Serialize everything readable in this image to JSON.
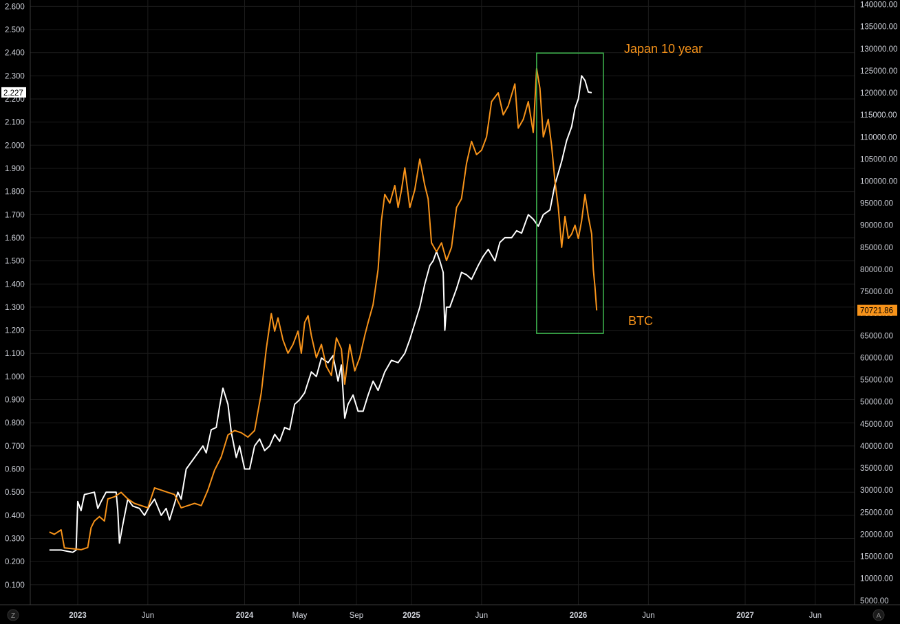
{
  "chart_data": {
    "type": "line",
    "title": "",
    "left_axis": {
      "ticks": [
        "0.100",
        "0.200",
        "0.300",
        "0.400",
        "0.500",
        "0.600",
        "0.700",
        "0.800",
        "0.900",
        "1.000",
        "1.100",
        "1.200",
        "1.300",
        "1.400",
        "1.500",
        "1.600",
        "1.700",
        "1.800",
        "1.900",
        "2.000",
        "2.100",
        "2.200",
        "2.300",
        "2.400",
        "2.500",
        "2.600"
      ],
      "ylim": [
        0.0,
        2.66
      ],
      "last_value_label": "2.227"
    },
    "right_axis": {
      "ticks": [
        "5000.00",
        "10000.00",
        "15000.00",
        "20000.00",
        "25000.00",
        "30000.00",
        "35000.00",
        "40000.00",
        "45000.00",
        "50000.00",
        "55000.00",
        "60000.00",
        "65000.00",
        "70000.00",
        "75000.00",
        "80000.00",
        "85000.00",
        "90000.00",
        "95000.00",
        "100000.00",
        "105000.00",
        "110000.00",
        "115000.00",
        "120000.00",
        "125000.00",
        "130000.00",
        "135000.00",
        "140000.00"
      ],
      "ylim": [
        4000,
        141000
      ],
      "last_value_label": "70721.86"
    },
    "x_axis": {
      "range": [
        2022.83,
        2027.42
      ],
      "ticks": [
        {
          "x": 2023.0,
          "label": "2023",
          "major": true
        },
        {
          "x": 2023.42,
          "label": "Jun",
          "major": false
        },
        {
          "x": 2024.0,
          "label": "2024",
          "major": true
        },
        {
          "x": 2024.33,
          "label": "May",
          "major": false
        },
        {
          "x": 2024.67,
          "label": "Sep",
          "major": false
        },
        {
          "x": 2025.0,
          "label": "2025",
          "major": true
        },
        {
          "x": 2025.42,
          "label": "Jun",
          "major": false
        },
        {
          "x": 2026.0,
          "label": "2026",
          "major": true
        },
        {
          "x": 2026.42,
          "label": "Jun",
          "major": false
        },
        {
          "x": 2027.0,
          "label": "2027",
          "major": true
        },
        {
          "x": 2027.42,
          "label": "Jun",
          "major": false
        }
      ]
    },
    "series": [
      {
        "name": "Japan 10 year",
        "axis": "left",
        "color": "#ffffff",
        "points": [
          [
            2022.83,
            0.25
          ],
          [
            2022.9,
            0.25
          ],
          [
            2022.97,
            0.24
          ],
          [
            2022.99,
            0.25
          ],
          [
            2023.0,
            0.46
          ],
          [
            2023.02,
            0.42
          ],
          [
            2023.04,
            0.49
          ],
          [
            2023.1,
            0.5
          ],
          [
            2023.12,
            0.43
          ],
          [
            2023.14,
            0.46
          ],
          [
            2023.17,
            0.5
          ],
          [
            2023.2,
            0.5
          ],
          [
            2023.23,
            0.5
          ],
          [
            2023.24,
            0.42
          ],
          [
            2023.25,
            0.28
          ],
          [
            2023.27,
            0.36
          ],
          [
            2023.3,
            0.47
          ],
          [
            2023.33,
            0.44
          ],
          [
            2023.37,
            0.43
          ],
          [
            2023.4,
            0.4
          ],
          [
            2023.43,
            0.44
          ],
          [
            2023.46,
            0.47
          ],
          [
            2023.5,
            0.4
          ],
          [
            2023.53,
            0.43
          ],
          [
            2023.55,
            0.38
          ],
          [
            2023.58,
            0.45
          ],
          [
            2023.6,
            0.5
          ],
          [
            2023.62,
            0.47
          ],
          [
            2023.65,
            0.6
          ],
          [
            2023.7,
            0.65
          ],
          [
            2023.75,
            0.7
          ],
          [
            2023.77,
            0.67
          ],
          [
            2023.8,
            0.77
          ],
          [
            2023.83,
            0.78
          ],
          [
            2023.85,
            0.87
          ],
          [
            2023.87,
            0.95
          ],
          [
            2023.9,
            0.88
          ],
          [
            2023.92,
            0.76
          ],
          [
            2023.95,
            0.65
          ],
          [
            2023.97,
            0.7
          ],
          [
            2024.0,
            0.6
          ],
          [
            2024.03,
            0.6
          ],
          [
            2024.06,
            0.7
          ],
          [
            2024.09,
            0.73
          ],
          [
            2024.12,
            0.68
          ],
          [
            2024.15,
            0.7
          ],
          [
            2024.18,
            0.75
          ],
          [
            2024.21,
            0.72
          ],
          [
            2024.24,
            0.78
          ],
          [
            2024.27,
            0.77
          ],
          [
            2024.3,
            0.88
          ],
          [
            2024.33,
            0.9
          ],
          [
            2024.36,
            0.93
          ],
          [
            2024.4,
            1.02
          ],
          [
            2024.43,
            1.0
          ],
          [
            2024.46,
            1.08
          ],
          [
            2024.5,
            1.06
          ],
          [
            2024.53,
            1.09
          ],
          [
            2024.56,
            0.98
          ],
          [
            2024.58,
            1.05
          ],
          [
            2024.6,
            0.82
          ],
          [
            2024.62,
            0.88
          ],
          [
            2024.65,
            0.92
          ],
          [
            2024.68,
            0.85
          ],
          [
            2024.71,
            0.85
          ],
          [
            2024.74,
            0.92
          ],
          [
            2024.77,
            0.98
          ],
          [
            2024.8,
            0.94
          ],
          [
            2024.84,
            1.02
          ],
          [
            2024.88,
            1.07
          ],
          [
            2024.92,
            1.06
          ],
          [
            2024.96,
            1.1
          ],
          [
            2024.99,
            1.16
          ],
          [
            2025.02,
            1.23
          ],
          [
            2025.05,
            1.3
          ],
          [
            2025.08,
            1.4
          ],
          [
            2025.11,
            1.48
          ],
          [
            2025.13,
            1.5
          ],
          [
            2025.15,
            1.54
          ],
          [
            2025.17,
            1.5
          ],
          [
            2025.19,
            1.45
          ],
          [
            2025.2,
            1.2
          ],
          [
            2025.21,
            1.3
          ],
          [
            2025.23,
            1.3
          ],
          [
            2025.27,
            1.38
          ],
          [
            2025.3,
            1.45
          ],
          [
            2025.33,
            1.44
          ],
          [
            2025.36,
            1.42
          ],
          [
            2025.4,
            1.48
          ],
          [
            2025.43,
            1.52
          ],
          [
            2025.46,
            1.55
          ],
          [
            2025.5,
            1.5
          ],
          [
            2025.53,
            1.58
          ],
          [
            2025.56,
            1.6
          ],
          [
            2025.6,
            1.6
          ],
          [
            2025.63,
            1.63
          ],
          [
            2025.66,
            1.62
          ],
          [
            2025.7,
            1.7
          ],
          [
            2025.73,
            1.68
          ],
          [
            2025.76,
            1.65
          ],
          [
            2025.79,
            1.7
          ],
          [
            2025.83,
            1.72
          ],
          [
            2025.86,
            1.83
          ],
          [
            2025.9,
            1.93
          ],
          [
            2025.93,
            2.02
          ],
          [
            2025.96,
            2.08
          ],
          [
            2025.98,
            2.16
          ],
          [
            2026.0,
            2.2
          ],
          [
            2026.02,
            2.3
          ],
          [
            2026.04,
            2.28
          ],
          [
            2026.06,
            2.23
          ],
          [
            2026.08,
            2.227
          ]
        ]
      },
      {
        "name": "BTC",
        "axis": "right",
        "color": "#f7931a",
        "points": [
          [
            2022.83,
            20500
          ],
          [
            2022.86,
            20000
          ],
          [
            2022.9,
            21000
          ],
          [
            2022.92,
            16900
          ],
          [
            2022.95,
            16800
          ],
          [
            2023.0,
            16600
          ],
          [
            2023.02,
            16500
          ],
          [
            2023.06,
            17000
          ],
          [
            2023.08,
            21500
          ],
          [
            2023.1,
            23000
          ],
          [
            2023.13,
            24000
          ],
          [
            2023.16,
            23000
          ],
          [
            2023.18,
            28000
          ],
          [
            2023.22,
            28500
          ],
          [
            2023.26,
            29500
          ],
          [
            2023.3,
            28000
          ],
          [
            2023.34,
            27000
          ],
          [
            2023.38,
            26500
          ],
          [
            2023.42,
            26000
          ],
          [
            2023.46,
            30500
          ],
          [
            2023.5,
            30000
          ],
          [
            2023.54,
            29500
          ],
          [
            2023.58,
            29000
          ],
          [
            2023.62,
            26000
          ],
          [
            2023.66,
            26500
          ],
          [
            2023.7,
            27000
          ],
          [
            2023.74,
            26500
          ],
          [
            2023.78,
            30000
          ],
          [
            2023.82,
            34500
          ],
          [
            2023.86,
            37500
          ],
          [
            2023.9,
            42500
          ],
          [
            2023.94,
            43500
          ],
          [
            2023.98,
            43000
          ],
          [
            2024.02,
            42000
          ],
          [
            2024.06,
            43500
          ],
          [
            2024.1,
            52000
          ],
          [
            2024.13,
            62000
          ],
          [
            2024.16,
            70000
          ],
          [
            2024.18,
            66000
          ],
          [
            2024.2,
            69000
          ],
          [
            2024.23,
            64000
          ],
          [
            2024.26,
            61000
          ],
          [
            2024.29,
            63000
          ],
          [
            2024.32,
            66000
          ],
          [
            2024.34,
            61000
          ],
          [
            2024.36,
            68000
          ],
          [
            2024.38,
            69500
          ],
          [
            2024.4,
            65000
          ],
          [
            2024.43,
            60000
          ],
          [
            2024.46,
            63000
          ],
          [
            2024.49,
            58000
          ],
          [
            2024.52,
            56000
          ],
          [
            2024.55,
            64500
          ],
          [
            2024.58,
            62000
          ],
          [
            2024.6,
            54000
          ],
          [
            2024.63,
            63000
          ],
          [
            2024.66,
            57000
          ],
          [
            2024.69,
            60000
          ],
          [
            2024.72,
            65000
          ],
          [
            2024.74,
            68000
          ],
          [
            2024.77,
            72000
          ],
          [
            2024.8,
            80000
          ],
          [
            2024.82,
            91000
          ],
          [
            2024.84,
            97000
          ],
          [
            2024.87,
            95000
          ],
          [
            2024.9,
            99000
          ],
          [
            2024.92,
            94000
          ],
          [
            2024.94,
            98000
          ],
          [
            2024.96,
            103000
          ],
          [
            2024.99,
            94000
          ],
          [
            2025.02,
            98000
          ],
          [
            2025.05,
            105000
          ],
          [
            2025.08,
            99000
          ],
          [
            2025.1,
            96000
          ],
          [
            2025.12,
            86000
          ],
          [
            2025.15,
            84000
          ],
          [
            2025.18,
            86000
          ],
          [
            2025.21,
            82000
          ],
          [
            2025.24,
            85000
          ],
          [
            2025.27,
            94000
          ],
          [
            2025.3,
            96000
          ],
          [
            2025.33,
            104000
          ],
          [
            2025.36,
            109000
          ],
          [
            2025.39,
            106000
          ],
          [
            2025.42,
            107000
          ],
          [
            2025.45,
            110000
          ],
          [
            2025.48,
            118000
          ],
          [
            2025.52,
            120000
          ],
          [
            2025.55,
            115000
          ],
          [
            2025.58,
            117000
          ],
          [
            2025.62,
            122000
          ],
          [
            2025.64,
            112000
          ],
          [
            2025.67,
            114000
          ],
          [
            2025.7,
            118000
          ],
          [
            2025.73,
            111000
          ],
          [
            2025.75,
            125500
          ],
          [
            2025.77,
            121000
          ],
          [
            2025.79,
            110000
          ],
          [
            2025.82,
            114000
          ],
          [
            2025.84,
            108000
          ],
          [
            2025.86,
            100000
          ],
          [
            2025.88,
            94000
          ],
          [
            2025.9,
            85000
          ],
          [
            2025.92,
            92000
          ],
          [
            2025.94,
            87000
          ],
          [
            2025.96,
            88000
          ],
          [
            2025.98,
            90000
          ],
          [
            2026.0,
            87000
          ],
          [
            2026.02,
            91000
          ],
          [
            2026.04,
            97000
          ],
          [
            2026.06,
            92000
          ],
          [
            2026.08,
            88000
          ],
          [
            2026.09,
            80000
          ],
          [
            2026.1,
            76000
          ],
          [
            2026.11,
            70721.86
          ]
        ]
      }
    ],
    "annotations": [
      {
        "text": "Japan 10 year",
        "color": "#f7931a"
      },
      {
        "text": "BTC",
        "color": "#f7931a"
      }
    ],
    "highlight_box": {
      "x": [
        2025.75,
        2026.15
      ],
      "right_axis_y": [
        65500,
        129000
      ],
      "color": "#3fb950"
    },
    "corner_labels": {
      "left": "Z",
      "right": "A"
    }
  }
}
